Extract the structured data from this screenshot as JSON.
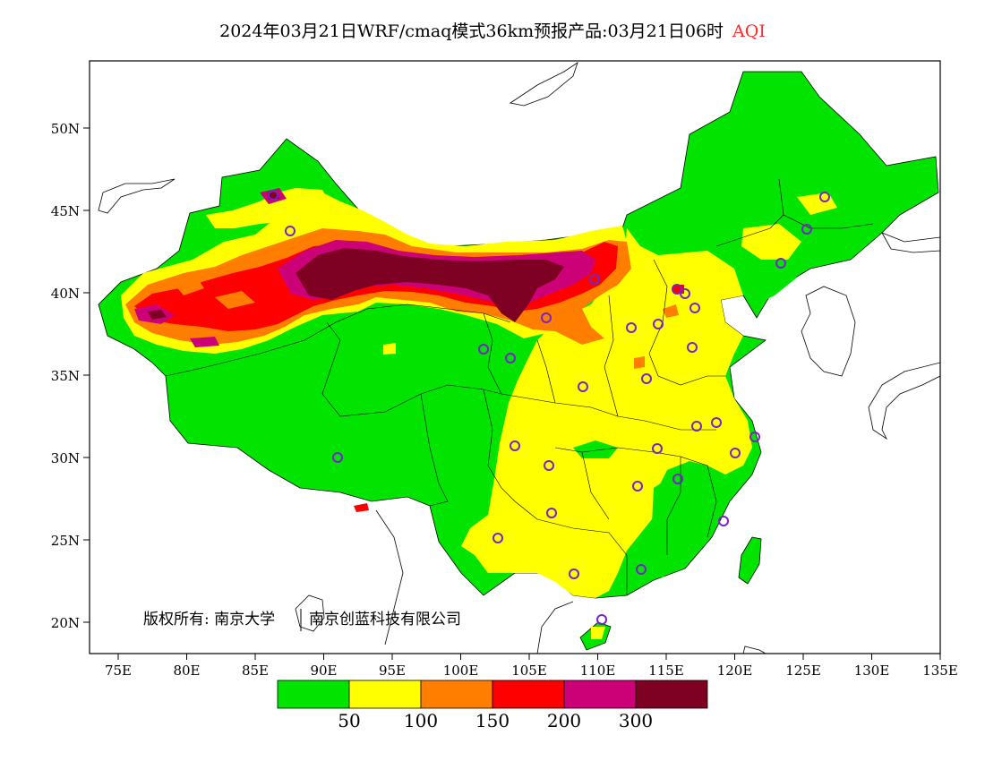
{
  "title": {
    "main": "2024年03月21日WRF/cmaq模式36km预报产品:03月21日06时",
    "variable": "AQI"
  },
  "map": {
    "lat_ticks": [
      "50N",
      "45N",
      "40N",
      "35N",
      "30N",
      "25N",
      "20N"
    ],
    "lon_ticks": [
      "75E",
      "80E",
      "85E",
      "90E",
      "95E",
      "100E",
      "105E",
      "110E",
      "115E",
      "120E",
      "125E",
      "130E",
      "135E"
    ],
    "copyright": "版权所有: 南京大学",
    "company": "南京创蓝科技有限公司",
    "station_marker_color": "#7a22c8"
  },
  "legend": {
    "bins": [
      {
        "color": "#00e400"
      },
      {
        "color": "#ffff00"
      },
      {
        "color": "#ff7e00"
      },
      {
        "color": "#ff0000"
      },
      {
        "color": "#cc0077"
      },
      {
        "color": "#7e0023"
      }
    ],
    "labels": [
      "50",
      "100",
      "150",
      "200",
      "300"
    ]
  }
}
